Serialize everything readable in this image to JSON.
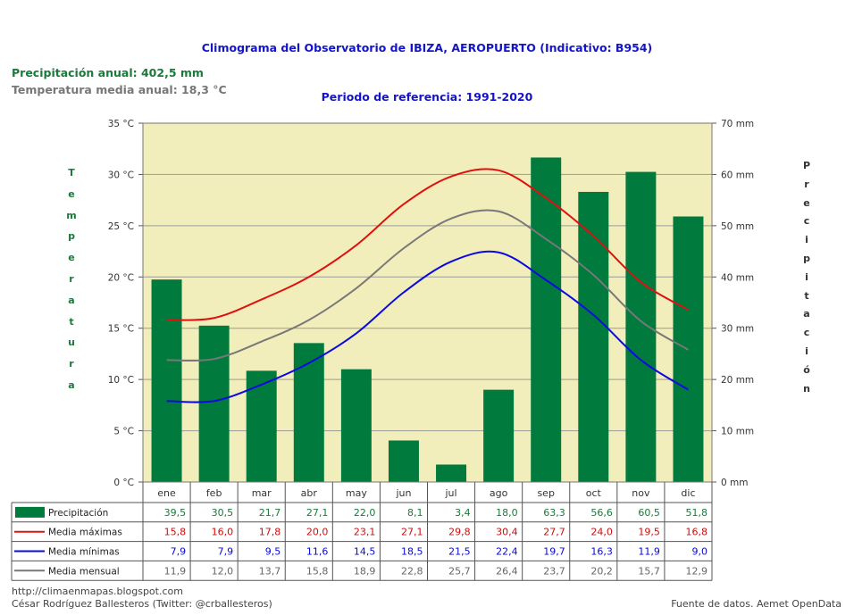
{
  "title": "Climograma del Observatorio de IBIZA, AEROPUERTO (Indicativo: B954)",
  "subtitle": "Periodo de referencia: 1991-2020",
  "annual": {
    "precip": "Precipitación anual: 402,5 mm",
    "temp": "Temperatura media anual: 18,3 °C"
  },
  "left_axis_label": "Temperatura",
  "right_axis_label": "Precipitación",
  "footer": {
    "blog": "http://climaenmapas.blogspot.com",
    "author": "César Rodríguez Ballesteros (Twitter: @crballesteros)",
    "source": "Fuente de datos. Aemet OpenData"
  },
  "colors": {
    "plot_bg": "#f2eebb",
    "precip": "#007a3d",
    "tmax": "#e01010",
    "tmin": "#0a0ae0",
    "tmean": "#787878",
    "precip_text": "#1a7a3a"
  },
  "chart_data": {
    "type": "bar",
    "categories": [
      "ene",
      "feb",
      "mar",
      "abr",
      "may",
      "jun",
      "jul",
      "ago",
      "sep",
      "oct",
      "nov",
      "dic"
    ],
    "temp_axis": {
      "range": [
        0,
        35
      ],
      "ticks": [
        0,
        5,
        10,
        15,
        20,
        25,
        30,
        35
      ],
      "unit": "°C"
    },
    "precip_axis": {
      "range": [
        0,
        70
      ],
      "ticks": [
        0,
        10,
        20,
        30,
        40,
        50,
        60,
        70
      ],
      "unit": "mm"
    },
    "grid": true,
    "series": [
      {
        "name": "Precipitación",
        "kind": "bar",
        "axis": "precip",
        "values": [
          39.5,
          30.5,
          21.7,
          27.1,
          22.0,
          8.1,
          3.4,
          18.0,
          63.3,
          56.6,
          60.5,
          51.8
        ],
        "labels": [
          "39,5",
          "30,5",
          "21,7",
          "27,1",
          "22,0",
          "8,1",
          "3,4",
          "18,0",
          "63,3",
          "56,6",
          "60,5",
          "51,8"
        ]
      },
      {
        "name": "Media máximas",
        "kind": "line",
        "axis": "temp",
        "values": [
          15.8,
          16.0,
          17.8,
          20.0,
          23.1,
          27.1,
          29.8,
          30.4,
          27.7,
          24.0,
          19.5,
          16.8
        ],
        "labels": [
          "15,8",
          "16,0",
          "17,8",
          "20,0",
          "23,1",
          "27,1",
          "29,8",
          "30,4",
          "27,7",
          "24,0",
          "19,5",
          "16,8"
        ]
      },
      {
        "name": "Media mínimas",
        "kind": "line",
        "axis": "temp",
        "values": [
          7.9,
          7.9,
          9.5,
          11.6,
          14.5,
          18.5,
          21.5,
          22.4,
          19.7,
          16.3,
          11.9,
          9.0
        ],
        "labels": [
          "7,9",
          "7,9",
          "9,5",
          "11,6",
          "14,5",
          "18,5",
          "21,5",
          "22,4",
          "19,7",
          "16,3",
          "11,9",
          "9,0"
        ]
      },
      {
        "name": "Media mensual",
        "kind": "line",
        "axis": "temp",
        "values": [
          11.9,
          12.0,
          13.7,
          15.8,
          18.9,
          22.8,
          25.7,
          26.4,
          23.7,
          20.2,
          15.7,
          12.9
        ],
        "labels": [
          "11,9",
          "12,0",
          "13,7",
          "15,8",
          "18,9",
          "22,8",
          "25,7",
          "26,4",
          "23,7",
          "20,2",
          "15,7",
          "12,9"
        ]
      }
    ]
  }
}
